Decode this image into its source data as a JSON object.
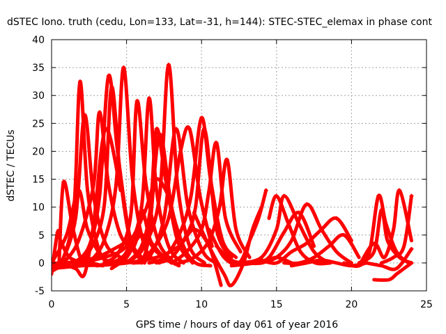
{
  "chart_data": {
    "type": "scatter",
    "title": "dSTEC Iono. truth (cedu, Lon=133, Lat=-31, h=144): STEC-STEC_elemax in phase cont",
    "xlabel": "GPS time / hours of day 061 of year 2016",
    "ylabel": "dSTEC  / TECUs",
    "xlim": [
      0,
      25
    ],
    "ylim": [
      -5,
      40
    ],
    "xticks": [
      0,
      5,
      10,
      15,
      20,
      25
    ],
    "yticks": [
      -5,
      0,
      5,
      10,
      15,
      20,
      25,
      30,
      35,
      40
    ],
    "grid": true,
    "marker": "plus",
    "color": "#ff0000",
    "series": [
      {
        "x": [
          0.0,
          1.0,
          1.8,
          2.4,
          3.4,
          4.4
        ],
        "y": [
          0.0,
          5.0,
          13.0,
          6.0,
          1.0,
          0.0
        ]
      },
      {
        "x": [
          0.0,
          0.8,
          1.5,
          1.9,
          2.4,
          3.2,
          4.0
        ],
        "y": [
          -0.5,
          1.0,
          10.0,
          32.5,
          13.0,
          2.0,
          0.0
        ]
      },
      {
        "x": [
          0.5,
          0.8,
          1.4,
          2.0,
          2.7,
          3.4
        ],
        "y": [
          0.0,
          14.5,
          6.5,
          0.5,
          0.0,
          -0.5
        ]
      },
      {
        "x": [
          0.0,
          0.8,
          1.6,
          2.2,
          2.8,
          3.6,
          4.6
        ],
        "y": [
          -1.5,
          -0.5,
          -1.0,
          -2.0,
          7.0,
          24.0,
          13.0
        ]
      },
      {
        "x": [
          0.6,
          1.6,
          2.2,
          2.8,
          3.6,
          4.6,
          5.4
        ],
        "y": [
          -0.5,
          8.0,
          26.5,
          12.0,
          3.5,
          1.0,
          0.0
        ]
      },
      {
        "x": [
          0.8,
          1.8,
          2.8,
          3.2,
          3.8,
          4.6,
          5.6
        ],
        "y": [
          0.0,
          4.0,
          14.0,
          27.0,
          14.0,
          5.0,
          2.0
        ]
      },
      {
        "x": [
          1.5,
          2.5,
          3.2,
          3.8,
          4.4,
          5.2,
          6.0
        ],
        "y": [
          0.0,
          3.0,
          12.0,
          33.5,
          20.0,
          5.0,
          1.0
        ]
      },
      {
        "x": [
          1.5,
          2.5,
          3.5,
          4.0,
          4.6,
          5.3,
          6.2
        ],
        "y": [
          -0.5,
          2.0,
          10.0,
          31.5,
          15.0,
          3.5,
          0.0
        ]
      },
      {
        "x": [
          2.5,
          3.5,
          4.3,
          4.8,
          5.4,
          6.2,
          7.2
        ],
        "y": [
          0.0,
          4.0,
          14.0,
          35.0,
          15.0,
          3.0,
          0.0
        ]
      },
      {
        "x": [
          3.5,
          4.5,
          5.3,
          5.7,
          6.3,
          7.1,
          8.0
        ],
        "y": [
          0.0,
          2.0,
          9.0,
          29.0,
          14.0,
          4.0,
          0.5
        ]
      },
      {
        "x": [
          0.0,
          1.5,
          3.5,
          5.0,
          6.2,
          7.0,
          7.8
        ],
        "y": [
          0.0,
          0.0,
          1.0,
          3.0,
          9.0,
          15.0,
          12.0
        ]
      },
      {
        "x": [
          4.0,
          5.0,
          6.0,
          6.5,
          7.0,
          7.8,
          8.8
        ],
        "y": [
          0.0,
          2.0,
          10.0,
          29.5,
          13.0,
          3.0,
          0.0
        ]
      },
      {
        "x": [
          5.0,
          6.0,
          6.6,
          7.0,
          7.6,
          8.4,
          9.4
        ],
        "y": [
          0.0,
          3.0,
          10.0,
          24.0,
          15.0,
          4.0,
          0.0
        ]
      },
      {
        "x": [
          5.0,
          6.2,
          7.2,
          7.8,
          8.4,
          9.2,
          10.2
        ],
        "y": [
          0.0,
          3.0,
          12.0,
          35.5,
          14.0,
          3.0,
          0.0
        ]
      },
      {
        "x": [
          5.5,
          6.5,
          7.5,
          8.3,
          9.1,
          10.1,
          11.0
        ],
        "y": [
          0.0,
          1.0,
          8.0,
          24.0,
          10.0,
          2.0,
          0.0
        ]
      },
      {
        "x": [
          6.0,
          6.5,
          7.2,
          8.0,
          8.8,
          9.6,
          10.6
        ],
        "y": [
          0.0,
          5.0,
          23.0,
          10.0,
          3.0,
          0.0,
          -0.5
        ]
      },
      {
        "x": [
          0.0,
          2.0,
          4.0,
          5.5,
          6.0,
          6.6,
          7.4,
          8.3
        ],
        "y": [
          -1.0,
          -0.5,
          0.0,
          3.0,
          9.5,
          4.0,
          1.0,
          0.0
        ]
      },
      {
        "x": [
          5.5,
          6.6,
          7.8,
          8.6,
          9.2,
          9.9,
          10.7
        ],
        "y": [
          0.0,
          2.0,
          8.0,
          20.0,
          24.0,
          12.0,
          3.0
        ]
      },
      {
        "x": [
          6.5,
          7.5,
          8.5,
          9.3,
          10.0,
          10.6,
          11.4,
          12.3
        ],
        "y": [
          0.0,
          1.0,
          5.0,
          12.0,
          26.0,
          15.0,
          4.0,
          1.0
        ]
      },
      {
        "x": [
          7.0,
          8.0,
          9.0,
          9.6,
          10.2,
          11.0,
          12.0
        ],
        "y": [
          0.0,
          1.0,
          5.0,
          10.0,
          24.0,
          6.0,
          1.0
        ]
      },
      {
        "x": [
          8.0,
          9.0,
          10.0,
          10.5,
          11.0,
          11.6,
          12.6
        ],
        "y": [
          0.0,
          2.0,
          6.0,
          13.0,
          21.5,
          8.0,
          2.0
        ]
      },
      {
        "x": [
          8.5,
          9.5,
          10.5,
          11.2,
          11.7,
          12.3,
          13.2
        ],
        "y": [
          0.0,
          1.0,
          4.0,
          10.0,
          18.5,
          6.0,
          1.0
        ]
      },
      {
        "x": [
          3.0,
          5.0,
          7.0,
          8.5,
          9.5,
          10.5,
          11.3
        ],
        "y": [
          -0.5,
          0.0,
          1.0,
          3.0,
          6.0,
          3.0,
          -4.0
        ]
      },
      {
        "x": [
          1.0,
          3.0,
          4.5,
          6.0,
          7.5,
          8.5
        ],
        "y": [
          0.0,
          1.0,
          3.0,
          5.0,
          1.0,
          -0.5
        ]
      },
      {
        "x": [
          0.0,
          0.4,
          0.6,
          1.2,
          2.2
        ],
        "y": [
          -2.0,
          5.5,
          4.0,
          1.0,
          0.0
        ]
      },
      {
        "x": [
          4.0,
          5.0,
          6.0,
          7.0,
          8.0
        ],
        "y": [
          -1.0,
          1.0,
          5.0,
          2.0,
          0.0
        ]
      },
      {
        "x": [
          9.5,
          10.5,
          11.5,
          12.0,
          12.8,
          13.4,
          14.0
        ],
        "y": [
          9.0,
          3.0,
          -2.0,
          -4.0,
          0.0,
          6.0,
          10.0
        ]
      },
      {
        "x": [
          10.5,
          11.5,
          12.5,
          13.2,
          13.8,
          14.3
        ],
        "y": [
          6.0,
          1.0,
          0.0,
          4.0,
          8.0,
          13.0
        ]
      },
      {
        "x": [
          12.0,
          13.5,
          14.5,
          15.5,
          16.5,
          17.5
        ],
        "y": [
          -0.5,
          0.0,
          1.0,
          5.5,
          9.0,
          3.0
        ]
      },
      {
        "x": [
          12.5,
          14.0,
          15.0,
          15.5,
          16.5,
          17.5,
          18.5
        ],
        "y": [
          0.0,
          1.0,
          6.0,
          12.0,
          7.0,
          2.0,
          0.0
        ]
      },
      {
        "x": [
          14.0,
          15.0,
          16.0,
          17.0,
          18.0,
          19.0,
          20.0
        ],
        "y": [
          0.0,
          1.0,
          4.0,
          10.5,
          6.0,
          2.0,
          0.0
        ]
      },
      {
        "x": [
          14.0,
          15.0,
          16.0,
          17.0,
          18.0,
          19.0,
          20.0
        ],
        "y": [
          0.5,
          0.0,
          2.0,
          3.5,
          6.0,
          8.0,
          4.0
        ]
      },
      {
        "x": [
          15.5,
          16.5,
          17.5,
          18.5,
          19.5,
          20.5
        ],
        "y": [
          0.0,
          0.0,
          1.0,
          3.0,
          5.0,
          1.0
        ]
      },
      {
        "x": [
          14.5,
          15.0,
          15.8,
          16.6,
          17.6,
          18.6
        ],
        "y": [
          8.0,
          12.0,
          7.0,
          2.0,
          0.0,
          0.0
        ]
      },
      {
        "x": [
          11.0,
          12.0,
          13.0,
          14.0,
          15.0,
          16.0
        ],
        "y": [
          3.0,
          0.5,
          0.0,
          0.0,
          1.0,
          0.0
        ]
      },
      {
        "x": [
          16.0,
          17.0,
          18.0,
          19.0,
          20.0,
          21.0
        ],
        "y": [
          -0.5,
          0.0,
          0.5,
          0.0,
          -0.5,
          0.0
        ]
      },
      {
        "x": [
          19.5,
          20.5,
          21.2,
          21.8,
          22.3,
          23.0,
          23.8
        ],
        "y": [
          0.0,
          -0.5,
          2.0,
          12.0,
          7.0,
          2.0,
          0.0
        ]
      },
      {
        "x": [
          20.5,
          21.5,
          22.0,
          22.4,
          23.2,
          24.0
        ],
        "y": [
          0.0,
          2.0,
          9.5,
          4.0,
          1.0,
          0.0
        ]
      },
      {
        "x": [
          20.5,
          21.5,
          22.2,
          22.8,
          23.2,
          24.0
        ],
        "y": [
          -0.5,
          3.5,
          1.0,
          6.0,
          13.0,
          4.0
        ]
      },
      {
        "x": [
          21.5,
          22.5,
          23.0,
          23.5,
          24.0
        ],
        "y": [
          -3.0,
          -3.0,
          -2.0,
          -1.0,
          0.0
        ]
      },
      {
        "x": [
          22.0,
          22.8,
          23.5,
          24.0
        ],
        "y": [
          0.0,
          1.0,
          3.0,
          12.0
        ]
      },
      {
        "x": [
          21.0,
          22.0,
          23.0,
          24.0
        ],
        "y": [
          0.0,
          -0.5,
          -1.0,
          2.5
        ]
      }
    ]
  }
}
